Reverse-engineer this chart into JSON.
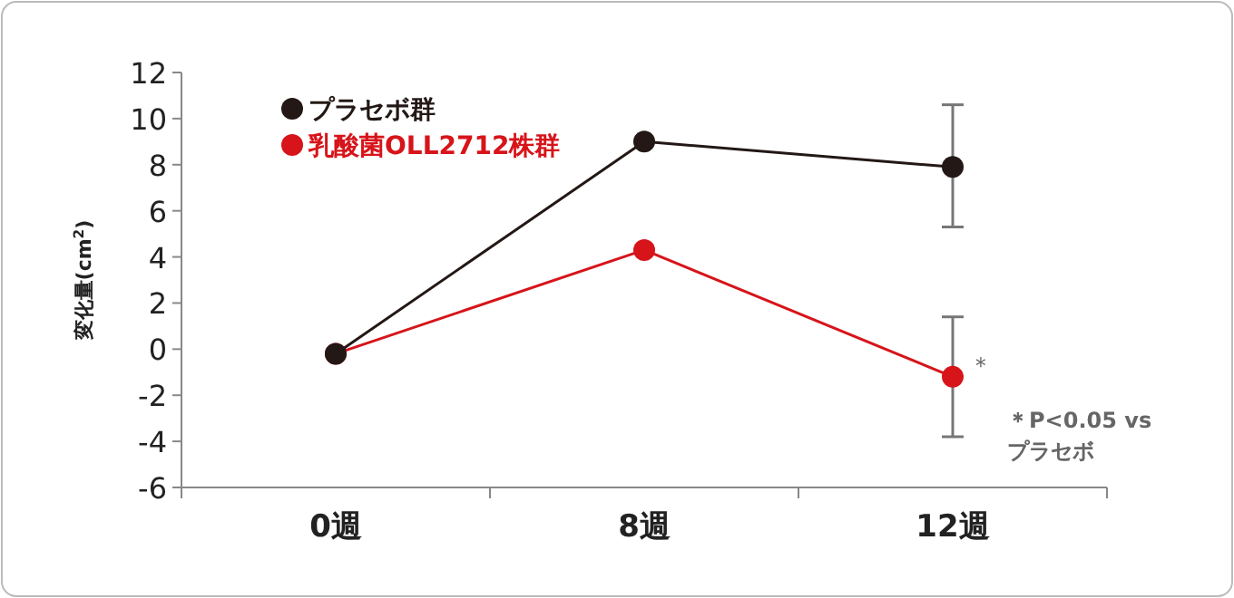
{
  "chart_data": {
    "type": "line",
    "ylabel": "変化量(cm$^{2}$)",
    "categories": [
      "0週",
      "8週",
      "12週"
    ],
    "ylim": [
      -6,
      12
    ],
    "yticks": [
      -6,
      -4,
      -2,
      0,
      2,
      4,
      6,
      8,
      10,
      12
    ],
    "marker": "circle",
    "legend": "top left",
    "grid": false,
    "series": [
      {
        "name": "プラセボ群",
        "color": "#231815",
        "values": [
          -0.2,
          9.0,
          7.9
        ],
        "errors": [
          null,
          null,
          [
            5.3,
            10.6
          ]
        ]
      },
      {
        "name": "乳酸菌OLL2712株群",
        "color": "#d7141a",
        "values": [
          -0.2,
          4.3,
          -1.2
        ],
        "errors": [
          null,
          null,
          [
            -3.8,
            1.4
          ]
        ]
      }
    ],
    "annotations": [
      {
        "text": "＊",
        "x": "12週",
        "y": -1.2
      },
      "＊P<0.05 vs\nプラセボ"
    ]
  }
}
